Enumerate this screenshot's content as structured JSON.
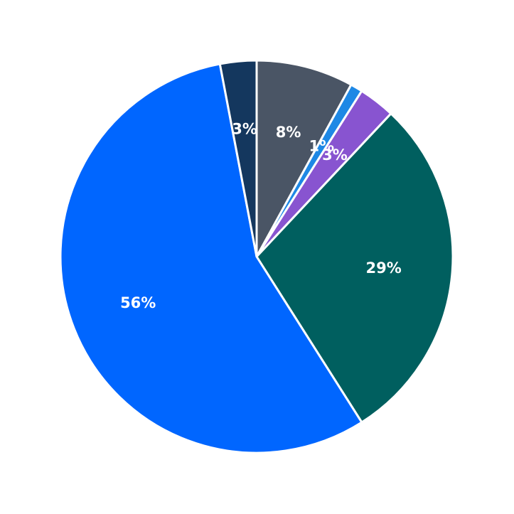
{
  "chart_data": {
    "type": "pie",
    "values": [
      8,
      1,
      3,
      29,
      56,
      3
    ],
    "value_labels": [
      "8%",
      "1%",
      "3%",
      "29%",
      "56%",
      "3%"
    ],
    "colors": [
      "#4a5565",
      "#1e88e5",
      "#8854d0",
      "#005f5f",
      "#0066ff",
      "#14375e"
    ],
    "start_angle": 0,
    "direction": "clockwise"
  }
}
